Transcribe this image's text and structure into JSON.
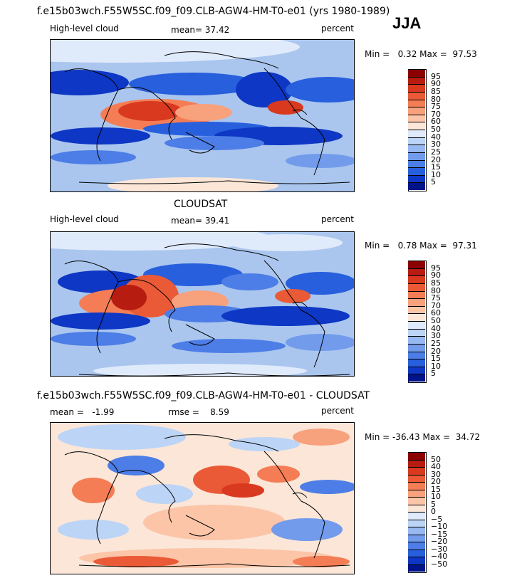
{
  "main_title": "f.e15b03wch.F55W5SC.f09_f09.CLB-AGW4-HM-T0-e01 (yrs 1980-1989)",
  "season": "JJA",
  "diff_title": "f.e15b03wch.F55W5SC.f09_f09.CLB-AGW4-HM-T0-e01 - CLOUDSAT",
  "chart_data": [
    {
      "type": "heatmap",
      "name": "model",
      "variable": "High-level cloud",
      "units": "percent",
      "stat_text": "mean=  37.42",
      "mean": 37.42,
      "min": 0.32,
      "max": 97.53,
      "minmax_text": "Min =   0.32 Max =  97.53",
      "levels": [
        "95",
        "90",
        "85",
        "80",
        "75",
        "70",
        "60",
        "50",
        "40",
        "30",
        "25",
        "20",
        "15",
        "10",
        "5"
      ],
      "colors": [
        "#8b0000",
        "#b71c10",
        "#d8391f",
        "#ea5a36",
        "#f47d55",
        "#f8a17d",
        "#fcc5a8",
        "#fbe6d8",
        "#dfeafb",
        "#bcd4f6",
        "#98b8f1",
        "#729bec",
        "#4d7de6",
        "#275fdd",
        "#0d37c4",
        "#00148a"
      ]
    },
    {
      "type": "heatmap",
      "name": "CLOUDSAT",
      "title": "CLOUDSAT",
      "variable": "High-level cloud",
      "units": "percent",
      "stat_text": "mean=  39.41",
      "mean": 39.41,
      "min": 0.78,
      "max": 97.31,
      "minmax_text": "Min =   0.78 Max =  97.31",
      "levels": [
        "95",
        "90",
        "85",
        "80",
        "75",
        "70",
        "60",
        "50",
        "40",
        "30",
        "25",
        "20",
        "15",
        "10",
        "5"
      ],
      "colors": [
        "#8b0000",
        "#b71c10",
        "#d8391f",
        "#ea5a36",
        "#f47d55",
        "#f8a17d",
        "#fcc5a8",
        "#fbe6d8",
        "#dfeafb",
        "#bcd4f6",
        "#98b8f1",
        "#729bec",
        "#4d7de6",
        "#275fdd",
        "#0d37c4",
        "#00148a"
      ]
    },
    {
      "type": "heatmap",
      "name": "difference",
      "units": "percent",
      "stat_text": "mean =   -1.99",
      "mean": -1.99,
      "rmse_text": "rmse =    8.59",
      "rmse": 8.59,
      "min": -36.43,
      "max": 34.72,
      "minmax_text": "Min = -36.43 Max =  34.72",
      "levels": [
        "50",
        "40",
        "30",
        "20",
        "15",
        "10",
        "5",
        "0",
        "−5",
        "−10",
        "−15",
        "−20",
        "−30",
        "−40",
        "−50"
      ],
      "colors": [
        "#8b0000",
        "#b71c10",
        "#d8391f",
        "#ea5a36",
        "#f47d55",
        "#f8a17d",
        "#fcc5a8",
        "#fbe6d8",
        "#dfeafb",
        "#bcd4f6",
        "#98b8f1",
        "#729bec",
        "#4d7de6",
        "#275fdd",
        "#0d37c4",
        "#00148a"
      ]
    }
  ]
}
